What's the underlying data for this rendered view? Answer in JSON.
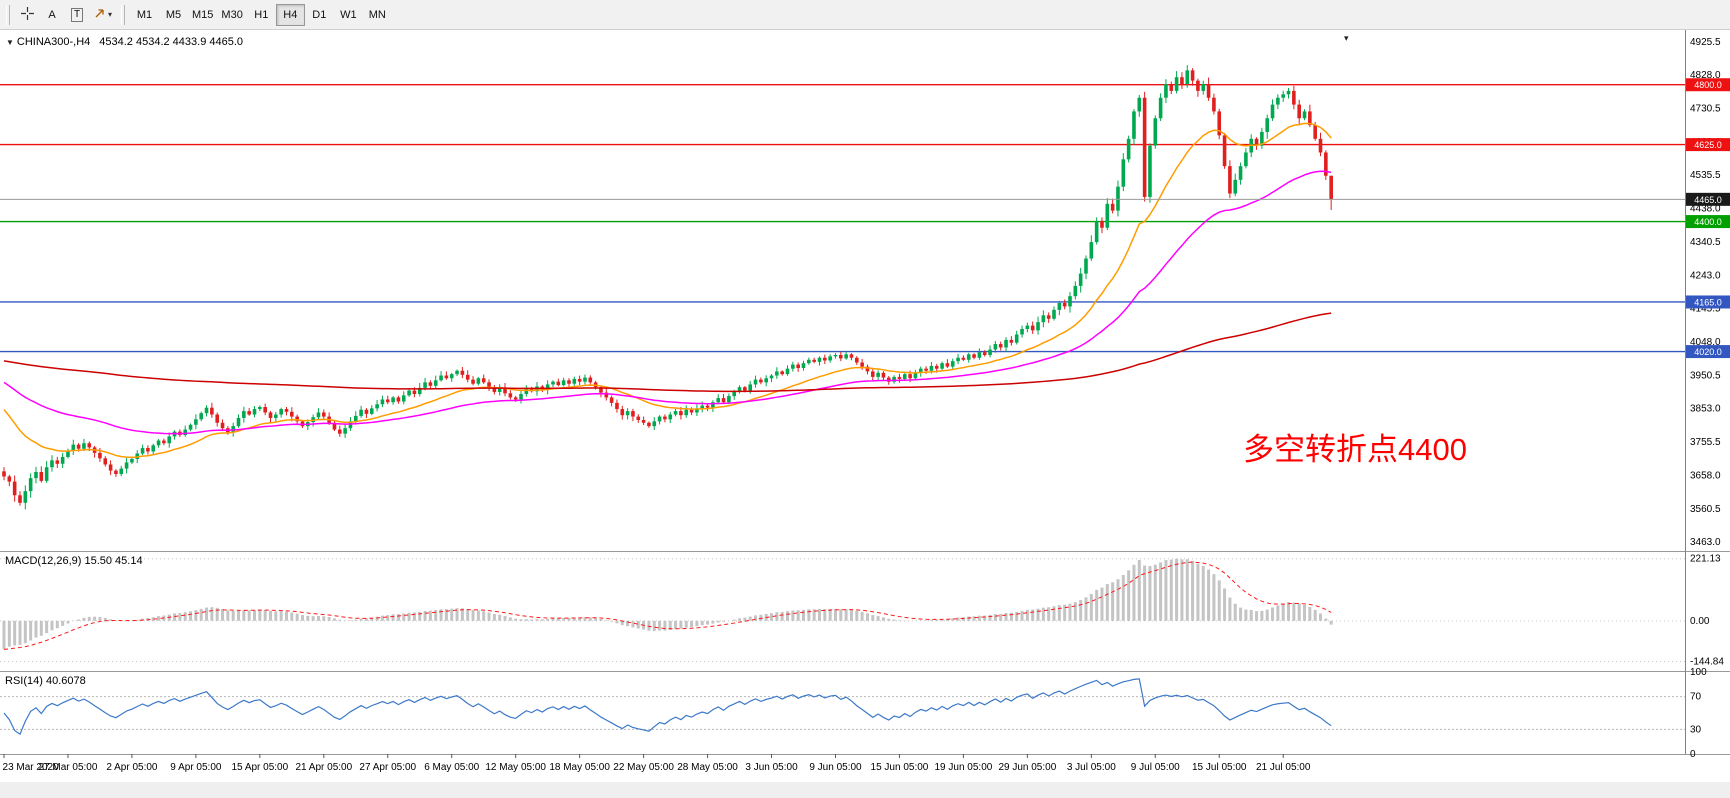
{
  "toolbar": {
    "text_tool_label": "A",
    "textbox_tool_label": "T",
    "timeframes": [
      "M1",
      "M5",
      "M15",
      "M30",
      "H1",
      "H4",
      "D1",
      "W1",
      "MN"
    ],
    "active_timeframe": "H4"
  },
  "chart": {
    "symbol": "CHINA300-,H4",
    "ohlc_readout": "4534.2 4534.2 4433.9 4465.0",
    "annotation_text": "多空转折点4400",
    "annotation_color": "#ff0000",
    "current_price": 4465.0,
    "current_price_tag": "4465.0",
    "ylim": [
      3440,
      4960
    ],
    "price_ticks": [
      4925.5,
      4828.0,
      4730.5,
      4633.0,
      4535.5,
      4438.0,
      4340.5,
      4243.0,
      4145.5,
      4048.0,
      3950.5,
      3853.0,
      3755.5,
      3658.0,
      3560.5,
      3463.0
    ],
    "hlines": [
      {
        "value": 4800,
        "label": "4800.0",
        "color": "#ee1111"
      },
      {
        "value": 4625,
        "label": "4625.0",
        "color": "#ee1111"
      },
      {
        "value": 4400,
        "label": "4400.0",
        "color": "#00A000"
      },
      {
        "value": 4165,
        "label": "4165.0",
        "color": "#3357c0"
      },
      {
        "value": 4020,
        "label": "4020.0",
        "color": "#3357c0"
      }
    ]
  },
  "chart_data": {
    "type": "candlestick",
    "symbol": "CHINA300",
    "timeframe": "H4",
    "x_labels": [
      "23 Mar 2020",
      "27 Mar 05:00",
      "2 Apr 05:00",
      "9 Apr 05:00",
      "15 Apr 05:00",
      "21 Apr 05:00",
      "27 Apr 05:00",
      "6 May 05:00",
      "12 May 05:00",
      "18 May 05:00",
      "22 May 05:00",
      "28 May 05:00",
      "3 Jun 05:00",
      "9 Jun 05:00",
      "15 Jun 05:00",
      "19 Jun 05:00",
      "29 Jun 05:00",
      "3 Jul 05:00",
      "9 Jul 05:00",
      "15 Jul 05:00",
      "21 Jul 05:00"
    ],
    "x_label_step": 12,
    "first_open": 3670,
    "last_candle": {
      "open": 4534.2,
      "high": 4534.2,
      "low": 4433.9,
      "close": 4465.0
    },
    "up_color": "#00A84F",
    "down_color": "#e01f1f",
    "closes": [
      3655,
      3640,
      3600,
      3578,
      3612,
      3650,
      3668,
      3642,
      3682,
      3702,
      3692,
      3712,
      3730,
      3748,
      3736,
      3752,
      3740,
      3724,
      3708,
      3690,
      3672,
      3662,
      3678,
      3696,
      3706,
      3722,
      3738,
      3728,
      3746,
      3760,
      3752,
      3772,
      3786,
      3776,
      3792,
      3806,
      3822,
      3840,
      3856,
      3836,
      3812,
      3796,
      3784,
      3802,
      3826,
      3846,
      3836,
      3852,
      3858,
      3842,
      3826,
      3836,
      3852,
      3844,
      3830,
      3816,
      3802,
      3814,
      3828,
      3842,
      3830,
      3812,
      3792,
      3780,
      3796,
      3816,
      3832,
      3850,
      3838,
      3854,
      3866,
      3880,
      3872,
      3886,
      3874,
      3892,
      3906,
      3896,
      3914,
      3930,
      3920,
      3936,
      3950,
      3942,
      3954,
      3964,
      3952,
      3938,
      3926,
      3942,
      3930,
      3916,
      3902,
      3914,
      3898,
      3886,
      3880,
      3896,
      3912,
      3904,
      3918,
      3908,
      3924,
      3932,
      3922,
      3936,
      3926,
      3940,
      3932,
      3944,
      3930,
      3916,
      3900,
      3886,
      3870,
      3852,
      3834,
      3846,
      3830,
      3820,
      3812,
      3802,
      3816,
      3830,
      3822,
      3836,
      3846,
      3834,
      3850,
      3842,
      3854,
      3862,
      3856,
      3872,
      3884,
      3872,
      3890,
      3902,
      3916,
      3906,
      3924,
      3938,
      3930,
      3942,
      3950,
      3962,
      3954,
      3970,
      3982,
      3972,
      3986,
      3996,
      3990,
      4002,
      3994,
      4006,
      4010,
      4000,
      4012,
      4002,
      3988,
      3976,
      3962,
      3946,
      3958,
      3944,
      3932,
      3946,
      3940,
      3954,
      3942,
      3958,
      3970,
      3964,
      3978,
      3970,
      3986,
      3976,
      3992,
      4002,
      3996,
      4012,
      4002,
      4018,
      4010,
      4026,
      4042,
      4032,
      4054,
      4046,
      4070,
      4086,
      4096,
      4082,
      4106,
      4126,
      4116,
      4142,
      4162,
      4152,
      4182,
      4212,
      4248,
      4292,
      4340,
      4402,
      4382,
      4452,
      4432,
      4502,
      4582,
      4642,
      4722,
      4762,
      4472,
      4622,
      4702,
      4762,
      4802,
      4782,
      4822,
      4802,
      4842,
      4812,
      4782,
      4802,
      4762,
      4722,
      4652,
      4562,
      4482,
      4522,
      4562,
      4602,
      4642,
      4622,
      4662,
      4702,
      4742,
      4762,
      4772,
      4782,
      4742,
      4702,
      4722,
      4682,
      4642,
      4602,
      4534,
      4465
    ],
    "overlays": [
      {
        "name": "ma-fast-line",
        "period": 21,
        "seed": 3870,
        "color": "#ff9c00"
      },
      {
        "name": "ma-mid-line",
        "period": 55,
        "seed": 3940,
        "color": "#ff00ff"
      },
      {
        "name": "ma-slow-line",
        "period": 300,
        "seed": 3995,
        "color": "#cc0000"
      }
    ]
  },
  "macd": {
    "label": "MACD(12,26,9) 15.50 45.14",
    "fast": 12,
    "slow": 26,
    "signal": 9,
    "seed_fast": 3615,
    "seed_slow": 3700,
    "scale_to": 221.13,
    "axis_labels": [
      "221.13",
      "0.00",
      "-144.84"
    ],
    "hist_color": "#c4c4c4",
    "signal_color": "#ff1a1a"
  },
  "rsi": {
    "label": "RSI(14) 40.6078",
    "period": 14,
    "levels": [
      70,
      30
    ],
    "axis_labels": [
      "100",
      "70",
      "30",
      "0"
    ],
    "color": "#3c78c8"
  }
}
